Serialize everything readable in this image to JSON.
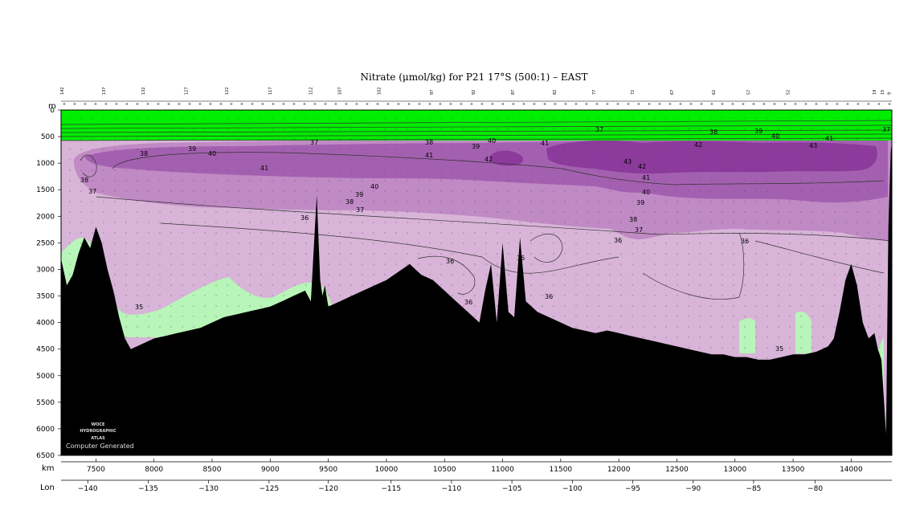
{
  "chart_data": {
    "type": "heatmap",
    "title": "Nitrate (μmol/kg) for P21 17°S (500:1) – EAST",
    "y_unit": "m",
    "x_unit": "km",
    "lon_label": "Lon",
    "xlim": [
      7200,
      14350
    ],
    "ylim": [
      0,
      6500
    ],
    "y_ticks": [
      "0",
      "500",
      "1000",
      "1500",
      "2000",
      "2500",
      "3000",
      "3500",
      "4000",
      "4500",
      "5000",
      "5500",
      "6000",
      "6500"
    ],
    "x_ticks": [
      "7500",
      "8000",
      "8500",
      "9000",
      "9500",
      "10000",
      "10500",
      "11000",
      "11500",
      "12000",
      "12500",
      "13000",
      "13500",
      "14000"
    ],
    "lon_ticks": [
      "−140",
      "−135",
      "−130",
      "−125",
      "−120",
      "−115",
      "−110",
      "−105",
      "−100",
      "−95",
      "−90",
      "−85",
      "−80"
    ],
    "lon_km": [
      7430,
      7950,
      8470,
      8990,
      9500,
      10040,
      10560,
      11080,
      11600,
      12120,
      12640,
      13160,
      13690
    ],
    "station_labels": [
      "142",
      "137",
      "132",
      "127",
      "122",
      "117",
      "112",
      "107",
      "102",
      "97",
      "92",
      "87",
      "82",
      "77",
      "72",
      "67",
      "62",
      "57",
      "52",
      "19",
      "15",
      "9"
    ],
    "station_km": [
      7220,
      7580,
      7920,
      8290,
      8640,
      9010,
      9360,
      9610,
      9950,
      10400,
      10760,
      11100,
      11460,
      11800,
      12130,
      12470,
      12830,
      13130,
      13470,
      14210,
      14280,
      14340
    ],
    "contour_levels": [
      35,
      36,
      37,
      38,
      39,
      40,
      41,
      42,
      43
    ],
    "colors": {
      "surface_low": "#00ee00",
      "below_36": "#b8f5b8",
      "band_36_38": "#d8b4d8",
      "band_38_40": "#c08ac5",
      "band_40_42": "#a460b0",
      "band_above_42": "#8c3a9c",
      "bathymetry": "#000000",
      "logo_text": "#dddddd"
    },
    "bathymetry": {
      "km": [
        7200,
        7250,
        7300,
        7350,
        7400,
        7450,
        7500,
        7550,
        7600,
        7650,
        7700,
        7750,
        7800,
        7900,
        8000,
        8100,
        8200,
        8300,
        8400,
        8500,
        8600,
        8700,
        8800,
        8900,
        9000,
        9100,
        9200,
        9300,
        9350,
        9400,
        9430,
        9450,
        9470,
        9500,
        9600,
        9700,
        9800,
        9900,
        10000,
        10100,
        10200,
        10300,
        10400,
        10500,
        10600,
        10700,
        10800,
        10850,
        10900,
        10950,
        11000,
        11050,
        11100,
        11150,
        11200,
        11300,
        11400,
        11500,
        11600,
        11700,
        11800,
        11900,
        12000,
        12100,
        12200,
        12300,
        12400,
        12500,
        12600,
        12700,
        12800,
        12900,
        13000,
        13100,
        13200,
        13300,
        13400,
        13500,
        13600,
        13700,
        13800,
        13850,
        13900,
        13950,
        14000,
        14050,
        14100,
        14150,
        14200,
        14230,
        14260,
        14280,
        14300,
        14320,
        14340,
        14350
      ],
      "depth_m": [
        2800,
        3300,
        3100,
        2700,
        2400,
        2600,
        2200,
        2500,
        3000,
        3400,
        3900,
        4300,
        4500,
        4400,
        4300,
        4250,
        4200,
        4150,
        4100,
        4000,
        3900,
        3850,
        3800,
        3750,
        3700,
        3600,
        3500,
        3400,
        3600,
        1600,
        3200,
        3500,
        3300,
        3700,
        3600,
        3500,
        3400,
        3300,
        3200,
        3050,
        2900,
        3100,
        3200,
        3400,
        3600,
        3800,
        4000,
        3400,
        2900,
        4000,
        2500,
        3800,
        3900,
        2400,
        3600,
        3800,
        3900,
        4000,
        4100,
        4150,
        4200,
        4150,
        4200,
        4250,
        4300,
        4350,
        4400,
        4450,
        4500,
        4550,
        4600,
        4600,
        4650,
        4650,
        4700,
        4700,
        4650,
        4600,
        4600,
        4550,
        4450,
        4300,
        3800,
        3200,
        2900,
        3300,
        4000,
        4300,
        4200,
        4500,
        4700,
        5400,
        6100,
        2200,
        800,
        600
      ]
    },
    "annotations": [
      "35",
      "36",
      "37",
      "38",
      "39",
      "40",
      "41",
      "42",
      "43"
    ]
  },
  "branding": {
    "logo_line1": "WOCE",
    "logo_line2": "HYDROGRAPHIC",
    "logo_line3": "ATLAS",
    "credit": "Computer Generated"
  }
}
